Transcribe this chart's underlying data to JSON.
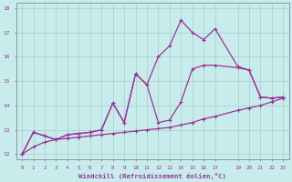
{
  "xlabel": "Windchill (Refroidissement éolien,°C)",
  "bg_color": "#c8ecec",
  "line_color": "#993399",
  "grid_color": "#aacccc",
  "xlim": [
    -0.5,
    23.5
  ],
  "ylim": [
    11.8,
    18.2
  ],
  "xticks": [
    0,
    1,
    2,
    3,
    4,
    5,
    6,
    7,
    8,
    9,
    10,
    11,
    12,
    13,
    14,
    15,
    16,
    17,
    19,
    20,
    21,
    22,
    23
  ],
  "yticks": [
    12,
    13,
    14,
    15,
    16,
    17,
    18
  ],
  "line_bottom_x": [
    0,
    1,
    2,
    3,
    4,
    5,
    6,
    7,
    8,
    9,
    10,
    11,
    12,
    13,
    14,
    15,
    16,
    17,
    19,
    20,
    21,
    22,
    23
  ],
  "line_bottom_y": [
    12.0,
    12.3,
    12.5,
    12.6,
    12.65,
    12.7,
    12.75,
    12.8,
    12.85,
    12.9,
    12.95,
    13.0,
    13.05,
    13.1,
    13.2,
    13.3,
    13.45,
    13.55,
    13.8,
    13.9,
    14.0,
    14.15,
    14.3
  ],
  "line_mid_x": [
    0,
    1,
    2,
    3,
    4,
    5,
    6,
    7,
    8,
    9,
    10,
    11,
    12,
    13,
    14,
    15,
    16,
    17,
    19,
    20,
    21,
    22,
    23
  ],
  "line_mid_y": [
    12.0,
    12.9,
    12.75,
    12.6,
    12.8,
    12.85,
    12.9,
    13.0,
    14.1,
    13.3,
    15.3,
    14.85,
    13.3,
    13.4,
    14.15,
    15.5,
    15.65,
    15.65,
    15.55,
    15.45,
    14.35,
    14.3,
    14.35
  ],
  "line_top_x": [
    0,
    1,
    2,
    3,
    4,
    5,
    6,
    7,
    8,
    9,
    10,
    11,
    12,
    13,
    14,
    15,
    16,
    17,
    19,
    20,
    21,
    22,
    23
  ],
  "line_top_y": [
    12.0,
    12.9,
    12.75,
    12.6,
    12.8,
    12.85,
    12.9,
    13.0,
    14.1,
    13.3,
    15.3,
    14.85,
    16.0,
    16.45,
    17.5,
    17.0,
    16.7,
    17.15,
    15.6,
    15.45,
    14.35,
    14.3,
    14.35
  ]
}
